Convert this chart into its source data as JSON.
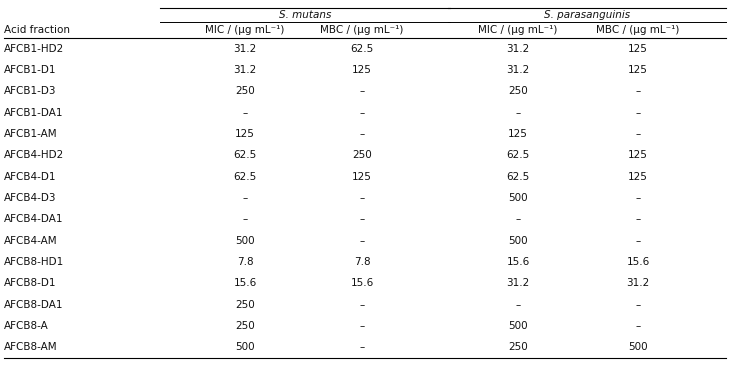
{
  "span_headers": [
    "S. mutans",
    "S. parasanguinis"
  ],
  "col_headers": [
    "Acid fraction",
    "MIC / (μg mL⁻¹)",
    "MBC / (μg mL⁻¹)",
    "MIC / (μg mL⁻¹)",
    "MBC / (μg mL⁻¹)"
  ],
  "rows": [
    [
      "AFCB1-HD2",
      "31.2",
      "62.5",
      "31.2",
      "125"
    ],
    [
      "AFCB1-D1",
      "31.2",
      "125",
      "31.2",
      "125"
    ],
    [
      "AFCB1-D3",
      "250",
      "–",
      "250",
      "–"
    ],
    [
      "AFCB1-DA1",
      "–",
      "–",
      "–",
      "–"
    ],
    [
      "AFCB1-AM",
      "125",
      "–",
      "125",
      "–"
    ],
    [
      "AFCB4-HD2",
      "62.5",
      "250",
      "62.5",
      "125"
    ],
    [
      "AFCB4-D1",
      "62.5",
      "125",
      "62.5",
      "125"
    ],
    [
      "AFCB4-D3",
      "–",
      "–",
      "500",
      "–"
    ],
    [
      "AFCB4-DA1",
      "–",
      "–",
      "–",
      "–"
    ],
    [
      "AFCB4-AM",
      "500",
      "–",
      "500",
      "–"
    ],
    [
      "AFCB8-HD1",
      "7.8",
      "7.8",
      "15.6",
      "15.6"
    ],
    [
      "AFCB8-D1",
      "15.6",
      "15.6",
      "31.2",
      "31.2"
    ],
    [
      "AFCB8-DA1",
      "250",
      "–",
      "–",
      "–"
    ],
    [
      "AFCB8-A",
      "250",
      "–",
      "500",
      "–"
    ],
    [
      "AFCB8-AM",
      "500",
      "–",
      "250",
      "500"
    ]
  ],
  "background_color": "#ffffff",
  "text_color": "#111111",
  "font_size": 7.5,
  "header_font_size": 7.5
}
